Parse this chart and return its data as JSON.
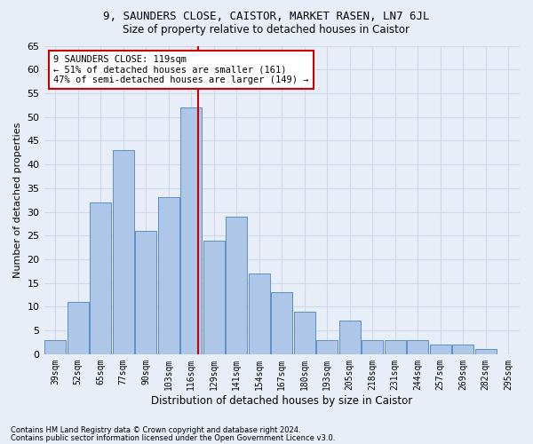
{
  "title": "9, SAUNDERS CLOSE, CAISTOR, MARKET RASEN, LN7 6JL",
  "subtitle": "Size of property relative to detached houses in Caistor",
  "xlabel": "Distribution of detached houses by size in Caistor",
  "ylabel": "Number of detached properties",
  "categories": [
    "39sqm",
    "52sqm",
    "65sqm",
    "77sqm",
    "90sqm",
    "103sqm",
    "116sqm",
    "129sqm",
    "141sqm",
    "154sqm",
    "167sqm",
    "180sqm",
    "193sqm",
    "205sqm",
    "218sqm",
    "231sqm",
    "244sqm",
    "257sqm",
    "269sqm",
    "282sqm",
    "295sqm"
  ],
  "values": [
    3,
    11,
    32,
    43,
    26,
    33,
    52,
    24,
    29,
    17,
    13,
    9,
    3,
    7,
    3,
    3,
    3,
    2,
    2,
    1,
    0
  ],
  "bar_color": "#aec6e8",
  "bar_edge_color": "#5b8fc9",
  "annotation_text": "9 SAUNDERS CLOSE: 119sqm\n← 51% of detached houses are smaller (161)\n47% of semi-detached houses are larger (149) →",
  "annotation_box_color": "#ffffff",
  "annotation_box_edge_color": "#cc0000",
  "vline_color": "#cc0000",
  "ylim": [
    0,
    65
  ],
  "yticks": [
    0,
    5,
    10,
    15,
    20,
    25,
    30,
    35,
    40,
    45,
    50,
    55,
    60,
    65
  ],
  "grid_color": "#d0d8e8",
  "background_color": "#e8eef8",
  "footer1": "Contains HM Land Registry data © Crown copyright and database right 2024.",
  "footer2": "Contains public sector information licensed under the Open Government Licence v3.0."
}
